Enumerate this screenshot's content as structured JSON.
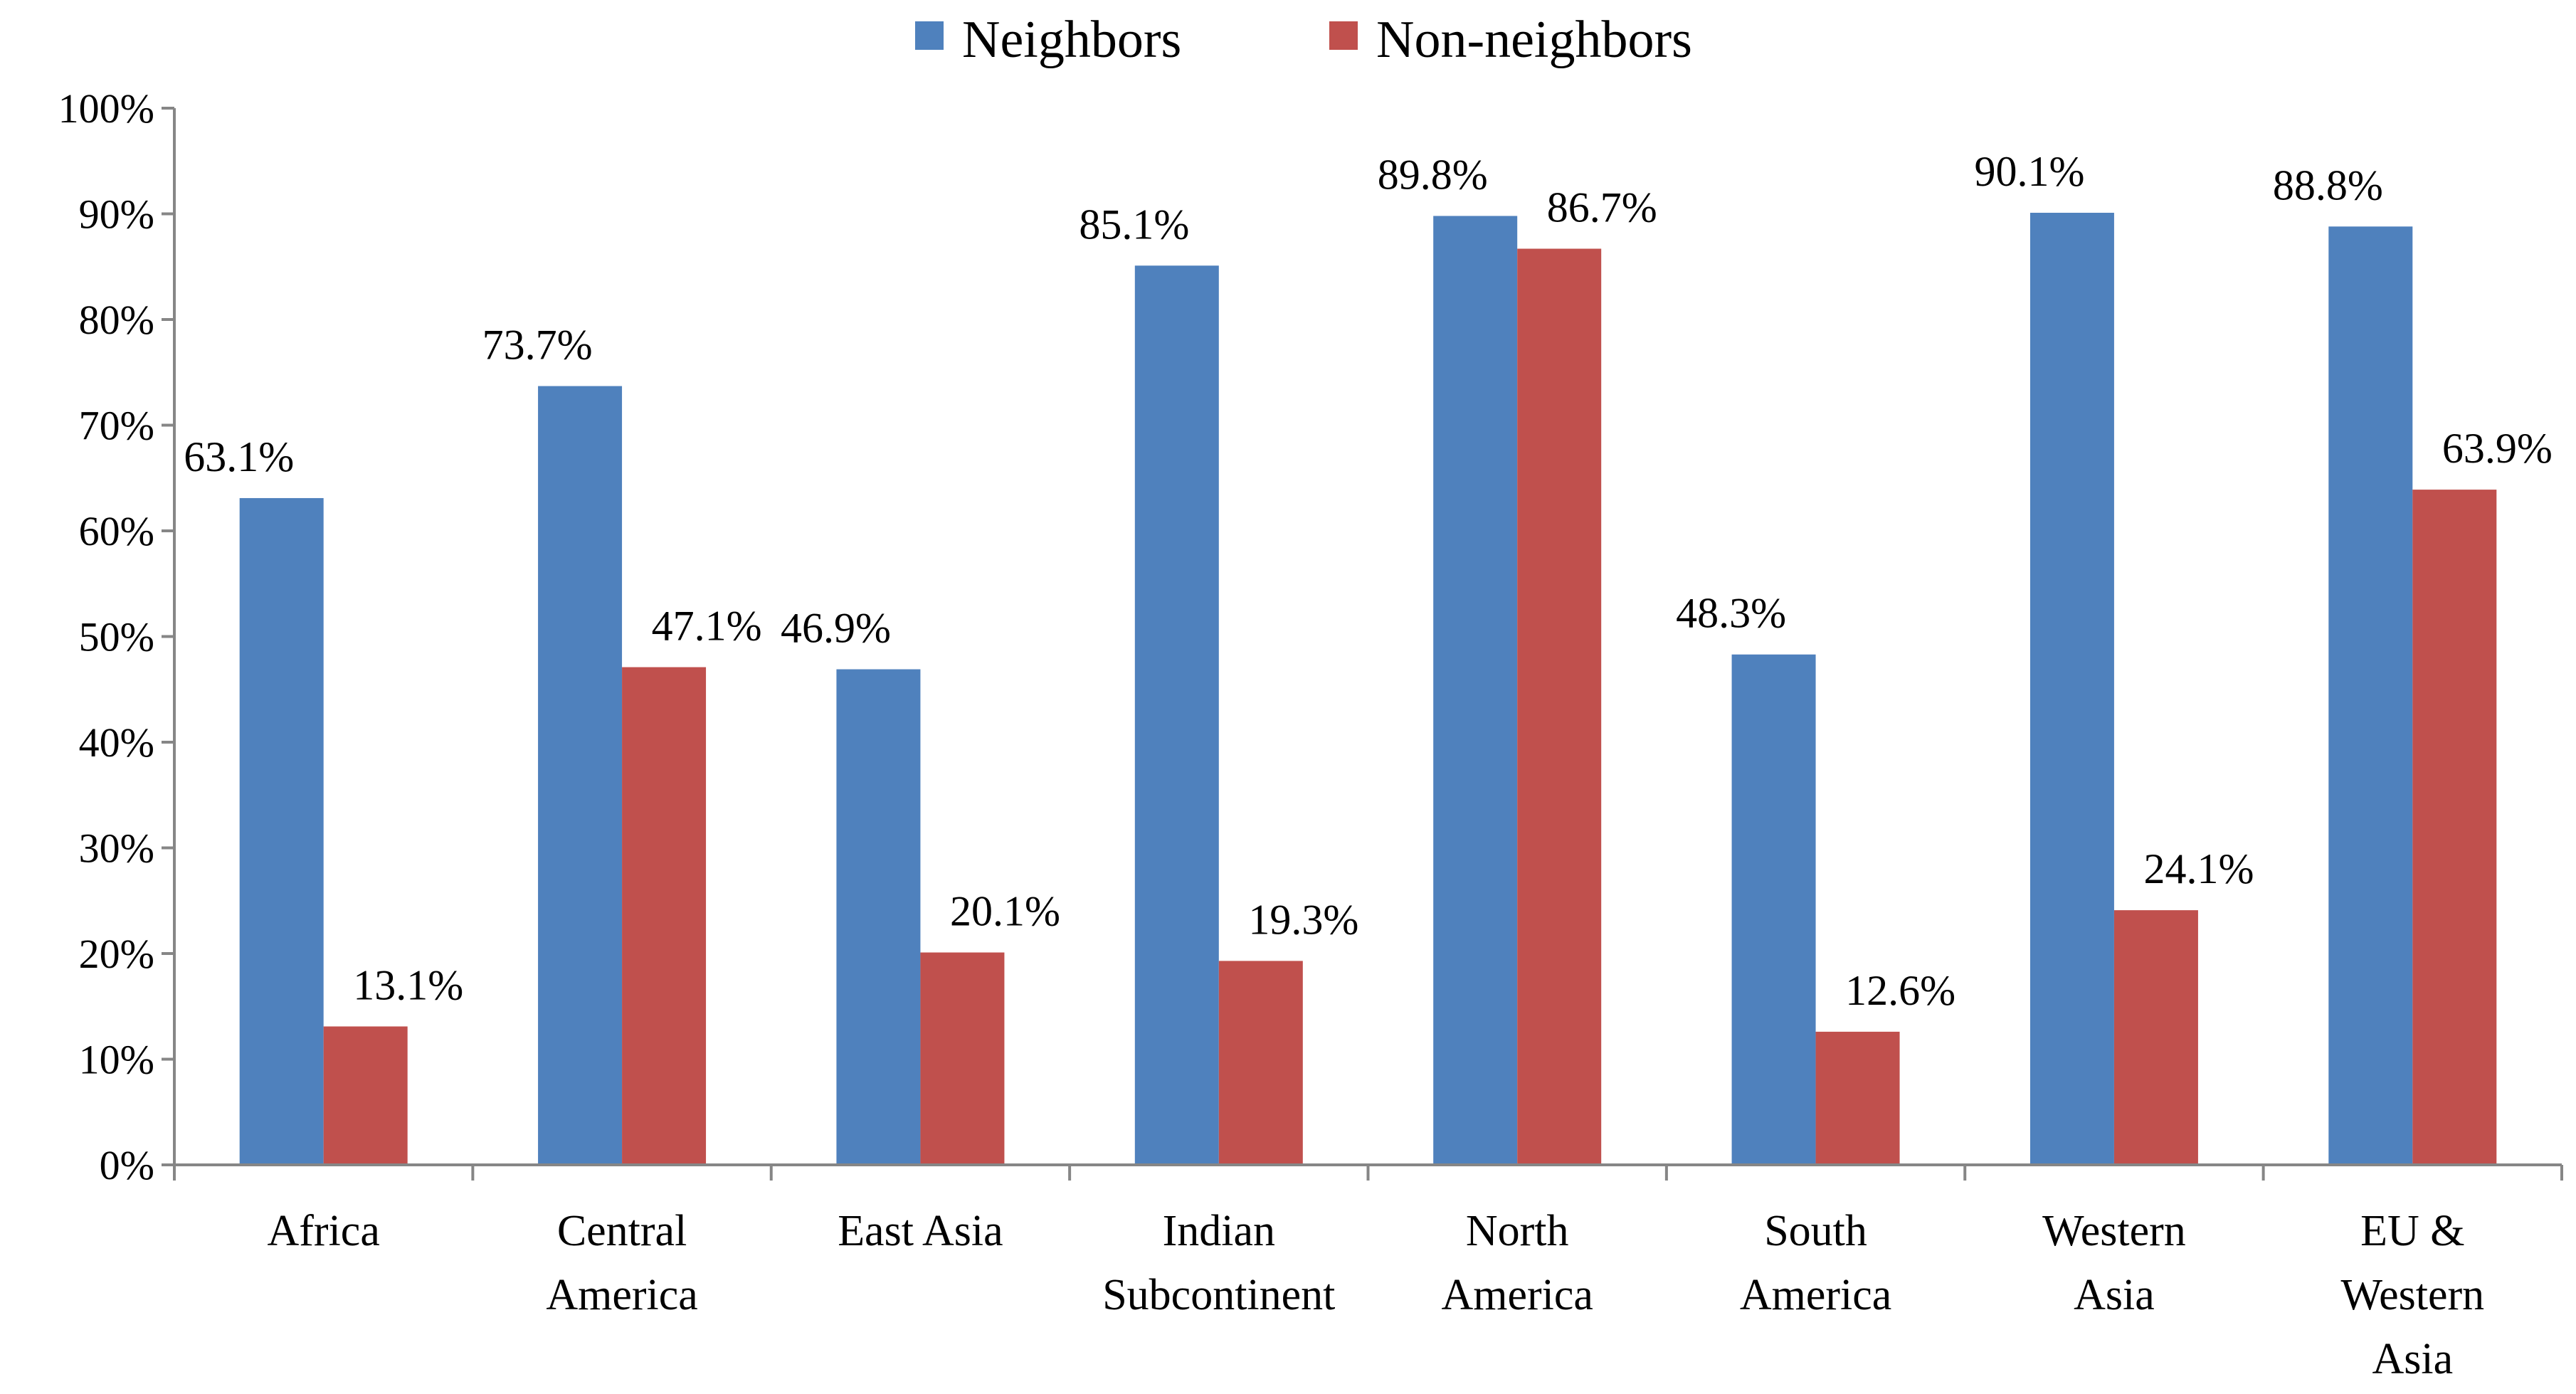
{
  "chart_data": {
    "type": "bar",
    "title": "",
    "xlabel": "",
    "ylabel": "",
    "ylim": [
      0,
      100
    ],
    "y_ticks": [
      "0%",
      "10%",
      "20%",
      "30%",
      "40%",
      "50%",
      "60%",
      "70%",
      "80%",
      "90%",
      "100%"
    ],
    "categories": [
      [
        "Africa"
      ],
      [
        "Central",
        "America"
      ],
      [
        "East Asia"
      ],
      [
        "Indian",
        "Subcontinent"
      ],
      [
        "North",
        "America"
      ],
      [
        "South",
        "America"
      ],
      [
        "Western",
        "Asia"
      ],
      [
        "EU &",
        "Western",
        "Asia"
      ]
    ],
    "series": [
      {
        "name": "Neighbors",
        "color": "#4f81bd",
        "values": [
          63.1,
          73.7,
          46.9,
          85.1,
          89.8,
          48.3,
          90.1,
          88.8
        ],
        "labels": [
          "63.1%",
          "73.7%",
          "46.9%",
          "85.1%",
          "89.8%",
          "48.3%",
          "90.1%",
          "88.8%"
        ]
      },
      {
        "name": "Non-neighbors",
        "color": "#c0504d",
        "values": [
          13.1,
          47.1,
          20.1,
          19.3,
          86.7,
          12.6,
          24.1,
          63.9
        ],
        "labels": [
          "13.1%",
          "47.1%",
          "20.1%",
          "19.3%",
          "86.7%",
          "12.6%",
          "24.1%",
          "63.9%"
        ]
      }
    ],
    "legend": "top-center",
    "grid": false
  }
}
